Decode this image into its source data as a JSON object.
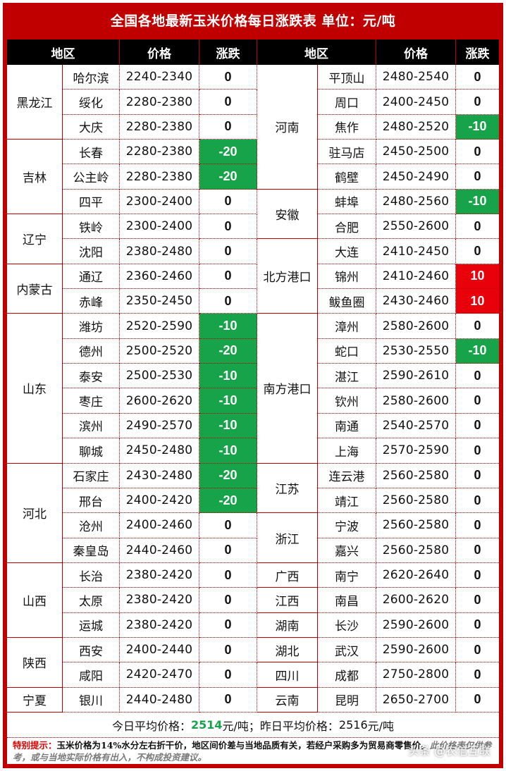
{
  "title": "全国各地最新玉米价格每日涨跌表    单位：元/吨",
  "headers": {
    "region": "地区",
    "price": "价格",
    "change": "涨跌"
  },
  "left": [
    {
      "region": "黑龙江",
      "rows": [
        {
          "city": "哈尔滨",
          "price": "2240-2340",
          "change": "0"
        },
        {
          "city": "绥化",
          "price": "2280-2380",
          "change": "0"
        },
        {
          "city": "大庆",
          "price": "2280-2380",
          "change": "0"
        }
      ]
    },
    {
      "region": "吉林",
      "rows": [
        {
          "city": "长春",
          "price": "2280-2380",
          "change": "-20"
        },
        {
          "city": "公主岭",
          "price": "2280-2380",
          "change": "-20"
        },
        {
          "city": "四平",
          "price": "2300-2400",
          "change": "0"
        }
      ]
    },
    {
      "region": "辽宁",
      "rows": [
        {
          "city": "铁岭",
          "price": "2300-2400",
          "change": "0"
        },
        {
          "city": "沈阳",
          "price": "2380-2480",
          "change": "0"
        }
      ]
    },
    {
      "region": "内蒙古",
      "rows": [
        {
          "city": "通辽",
          "price": "2360-2460",
          "change": "0"
        },
        {
          "city": "赤峰",
          "price": "2350-2450",
          "change": "0"
        }
      ]
    },
    {
      "region": "山东",
      "rows": [
        {
          "city": "潍坊",
          "price": "2520-2590",
          "change": "-10"
        },
        {
          "city": "德州",
          "price": "2500-2520",
          "change": "-20"
        },
        {
          "city": "泰安",
          "price": "2500-2530",
          "change": "-10"
        },
        {
          "city": "枣庄",
          "price": "2600-2620",
          "change": "-10"
        },
        {
          "city": "滨州",
          "price": "2490-2570",
          "change": "-10"
        },
        {
          "city": "聊城",
          "price": "2450-2480",
          "change": "-10"
        }
      ]
    },
    {
      "region": "河北",
      "rows": [
        {
          "city": "石家庄",
          "price": "2430-2480",
          "change": "-20"
        },
        {
          "city": "邢台",
          "price": "2400-2420",
          "change": "-20"
        },
        {
          "city": "沧州",
          "price": "2400-2460",
          "change": "0"
        },
        {
          "city": "秦皇岛",
          "price": "2440-2460",
          "change": "0"
        }
      ]
    },
    {
      "region": "山西",
      "rows": [
        {
          "city": "长治",
          "price": "2380-2420",
          "change": "0"
        },
        {
          "city": "太原",
          "price": "2380-2420",
          "change": "0"
        },
        {
          "city": "运城",
          "price": "2380-2420",
          "change": "0"
        }
      ]
    },
    {
      "region": "陕西",
      "rows": [
        {
          "city": "西安",
          "price": "2400-2440",
          "change": "0"
        },
        {
          "city": "咸阳",
          "price": "2420-2470",
          "change": "0"
        }
      ]
    },
    {
      "region": "宁夏",
      "rows": [
        {
          "city": "银川",
          "price": "2440-2480",
          "change": "0"
        }
      ]
    }
  ],
  "right": [
    {
      "region": "河南",
      "rows": [
        {
          "city": "平顶山",
          "price": "2480-2540",
          "change": "0"
        },
        {
          "city": "周口",
          "price": "2400-2450",
          "change": "0"
        },
        {
          "city": "焦作",
          "price": "2480-2520",
          "change": "-10"
        },
        {
          "city": "驻马店",
          "price": "2450-2500",
          "change": "0"
        },
        {
          "city": "鹤壁",
          "price": "2450-2490",
          "change": "0"
        }
      ]
    },
    {
      "region": "安徽",
      "rows": [
        {
          "city": "蚌埠",
          "price": "2480-2560",
          "change": "-10"
        },
        {
          "city": "合肥",
          "price": "2550-2600",
          "change": "0"
        }
      ]
    },
    {
      "region": "北方港口",
      "rows": [
        {
          "city": "大连",
          "price": "2410-2450",
          "change": "0"
        },
        {
          "city": "锦州",
          "price": "2410-2460",
          "change": "10"
        },
        {
          "city": "鲅鱼圈",
          "price": "2430-2460",
          "change": "10"
        }
      ]
    },
    {
      "region": "南方港口",
      "rows": [
        {
          "city": "漳州",
          "price": "2580-2600",
          "change": "0"
        },
        {
          "city": "蛇口",
          "price": "2530-2550",
          "change": "-10"
        },
        {
          "city": "湛江",
          "price": "2590-2610",
          "change": "0"
        },
        {
          "city": "钦州",
          "price": "2580-2600",
          "change": "0"
        },
        {
          "city": "南通",
          "price": "2540-2570",
          "change": "0"
        },
        {
          "city": "上海",
          "price": "2570-2590",
          "change": "0"
        }
      ]
    },
    {
      "region": "江苏",
      "rows": [
        {
          "city": "连云港",
          "price": "2560-2580",
          "change": "0"
        },
        {
          "city": "靖江",
          "price": "2560-2580",
          "change": "0"
        }
      ]
    },
    {
      "region": "浙江",
      "rows": [
        {
          "city": "宁波",
          "price": "2560-2580",
          "change": "0"
        },
        {
          "city": "嘉兴",
          "price": "2560-2580",
          "change": "0"
        }
      ]
    },
    {
      "region": "广西",
      "rows": [
        {
          "city": "南宁",
          "price": "2620-2640",
          "change": "0"
        }
      ]
    },
    {
      "region": "江西",
      "rows": [
        {
          "city": "南昌",
          "price": "2600-2620",
          "change": "0"
        }
      ]
    },
    {
      "region": "湖南",
      "rows": [
        {
          "city": "长沙",
          "price": "2590-2600",
          "change": "0"
        }
      ]
    },
    {
      "region": "湖北",
      "rows": [
        {
          "city": "武汉",
          "price": "2590-2600",
          "change": "0"
        }
      ]
    },
    {
      "region": "四川",
      "rows": [
        {
          "city": "成都",
          "price": "2750-2800",
          "change": "0"
        }
      ]
    },
    {
      "region": "云南",
      "rows": [
        {
          "city": "昆明",
          "price": "2650-2700",
          "change": "0"
        }
      ]
    }
  ],
  "average": {
    "today_label": "今日平均价格：",
    "today_value": "2514",
    "today_unit": "元/吨；",
    "yesterday_label": "昨日平均价格：",
    "yesterday_value": "2516",
    "yesterday_unit": "元/吨"
  },
  "note": {
    "label": "特别提示：",
    "text1": "玉米价格为14%水分左右折干价，地区间价差与当地品质有关，若经户采购多为贸易商零售价。",
    "text2": "此价格表仅供参考，或与当地实际价格有出入，不构成投资建议。"
  },
  "watermark": "头条 @农信互联",
  "colors": {
    "frame": "#c00000",
    "header_bg": "#000000",
    "down": "#16a34a",
    "up": "#e8000b"
  }
}
